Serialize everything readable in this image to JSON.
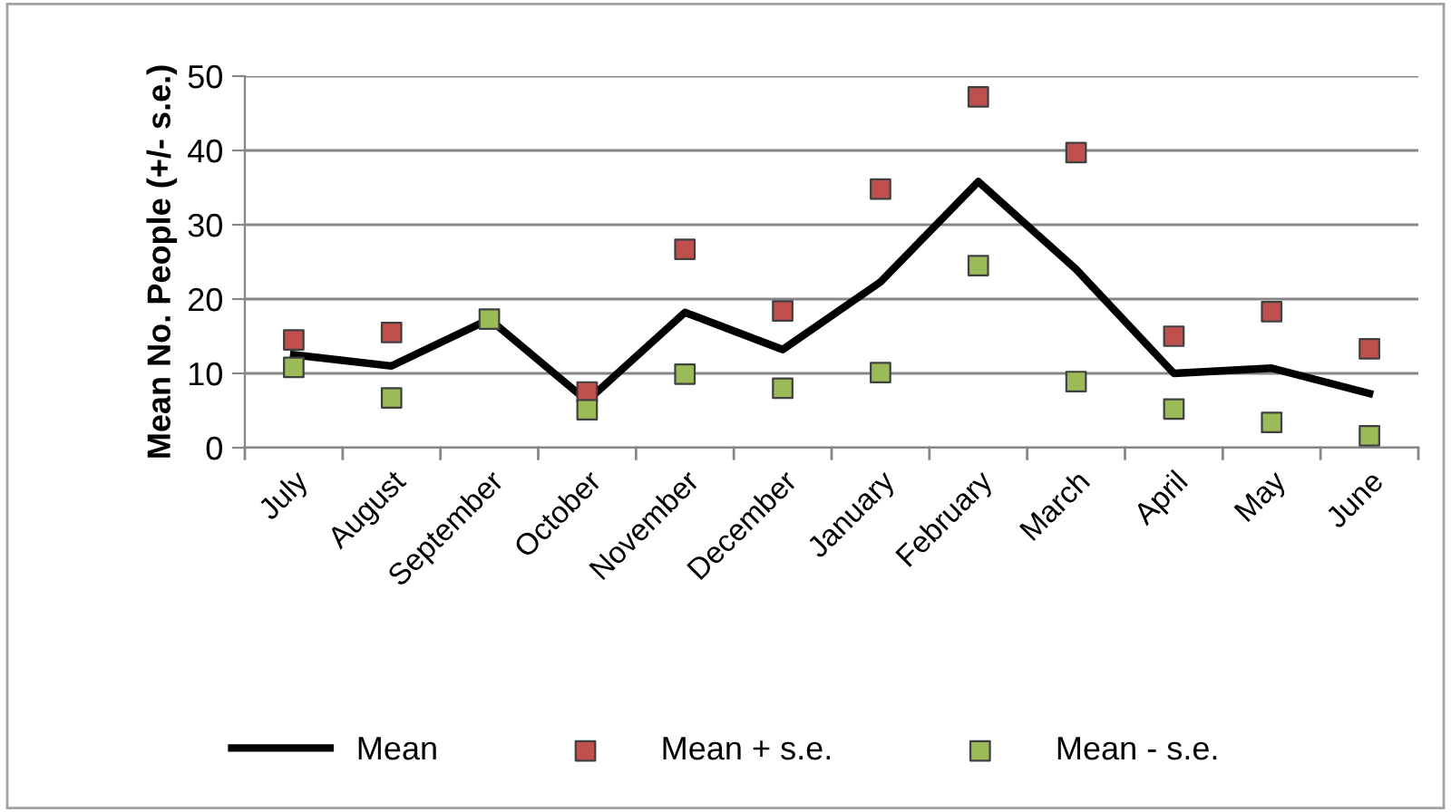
{
  "chart_data": {
    "type": "line",
    "ylabel": "Mean No. People (+/- s.e.)",
    "categories": [
      "July",
      "August",
      "September",
      "October",
      "November",
      "December",
      "January",
      "February",
      "March",
      "April",
      "May",
      "June"
    ],
    "series": [
      {
        "name": "Mean",
        "color": "#000000",
        "marker": "none",
        "values": [
          12.5,
          11,
          17.3,
          6.3,
          18.2,
          13.2,
          22.3,
          35.8,
          24,
          10,
          10.7,
          7.3
        ]
      },
      {
        "name": "Mean + s.e.",
        "type": "scatter",
        "color": "#c0504d",
        "marker": "square",
        "values": [
          14.5,
          15.5,
          null,
          7.5,
          26.7,
          18.4,
          34.8,
          47.2,
          39.7,
          15,
          18.3,
          13.3
        ]
      },
      {
        "name": "Mean - s.e.",
        "type": "scatter",
        "color": "#9bbb59",
        "marker": "square",
        "values": [
          10.8,
          6.7,
          17.3,
          5.1,
          9.9,
          8,
          10.1,
          24.5,
          8.9,
          5.2,
          3.4,
          1.6
        ]
      }
    ],
    "ylim": [
      0,
      50
    ],
    "yticks": [
      0,
      10,
      20,
      30,
      40,
      50
    ],
    "grid": "y",
    "legend": "bottom"
  }
}
